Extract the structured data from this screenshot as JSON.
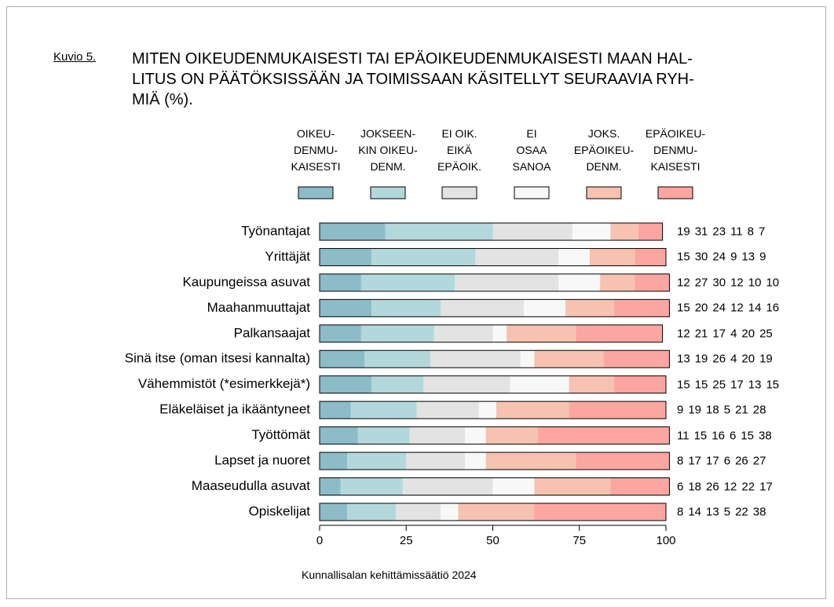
{
  "chart_data": {
    "type": "stacked_barh",
    "figure_label": "Kuvio 5.",
    "title": "MITEN OIKEUDENMUKAISESTI TAI EPÄOIKEUDENMUKAISESTI MAAN HAL-\nLITUS ON PÄÄTÖKSISSÄÄN JA TOIMISSAAN KÄSITELLYT SEURAAVIA RYH-\nMIÄ (%).",
    "source": "Kunnallisalan kehittämissäätiö 2024",
    "categories": [
      "Työnantajat",
      "Yrittäjät",
      "Kaupungeissa asuvat",
      "Maahanmuuttajat",
      "Palkansaajat",
      "Sinä itse (oman itsesi kannalta)",
      "Vähemmistöt (*esimerkkejä*)",
      "Eläkeläiset ja ikääntyneet",
      "Työttömät",
      "Lapset ja nuoret",
      "Maaseudulla asuvat",
      "Opiskelijat"
    ],
    "series": [
      {
        "name": "OIKEU-\nDENMU-\nKAISESTI",
        "color": "#8bbcc8",
        "values": [
          19,
          15,
          12,
          15,
          12,
          13,
          15,
          9,
          11,
          8,
          6,
          8
        ]
      },
      {
        "name": "JOKSEEN-\nKIN OIKEU-\nDENM.",
        "color": "#b3d8db",
        "values": [
          31,
          30,
          27,
          20,
          21,
          19,
          15,
          19,
          15,
          17,
          18,
          14
        ]
      },
      {
        "name": "EI OIK.\nEIKÄ\nEPÄOIK.",
        "color": "#e3e3e3",
        "values": [
          23,
          24,
          30,
          24,
          17,
          26,
          25,
          18,
          16,
          17,
          26,
          13
        ]
      },
      {
        "name": "EI\nOSAA\nSANOA",
        "color": "#f8f8f8",
        "values": [
          11,
          9,
          12,
          12,
          4,
          4,
          17,
          5,
          6,
          6,
          12,
          5
        ]
      },
      {
        "name": "JOKS.\nEPÄOIKEU-\nDENM.",
        "color": "#f7c2b0",
        "values": [
          8,
          13,
          10,
          14,
          20,
          20,
          13,
          21,
          15,
          26,
          22,
          22
        ]
      },
      {
        "name": "EPÄOIKEU-\nDENMU-\nKAISESTI",
        "color": "#fca6a1",
        "values": [
          7,
          9,
          10,
          16,
          25,
          19,
          15,
          28,
          38,
          27,
          17,
          38
        ]
      }
    ],
    "xlim": [
      0,
      100
    ],
    "xticks": [
      0,
      25,
      50,
      75,
      100
    ]
  }
}
